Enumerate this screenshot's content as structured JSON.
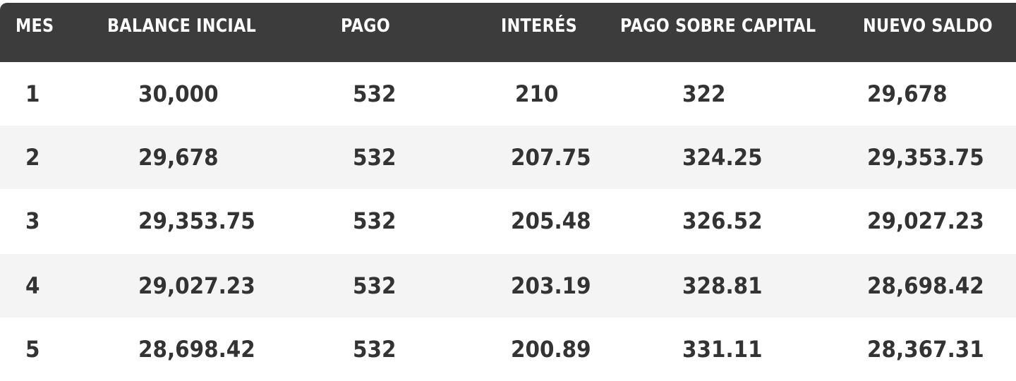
{
  "table": {
    "headers": [
      "MES",
      "BALANCE INCIAL",
      "PAGO",
      "INTERÉS",
      "PAGO SOBRE CAPITAL",
      "NUEVO SALDO"
    ],
    "rows": [
      [
        "1",
        "30,000",
        "532",
        "210",
        "322",
        "29,678"
      ],
      [
        "2",
        "29,678",
        "532",
        "207.75",
        "324.25",
        "29,353.75"
      ],
      [
        "3",
        "29,353.75",
        "532",
        "205.48",
        "326.52",
        "29,027.23"
      ],
      [
        "4",
        "29,027.23",
        "532",
        "203.19",
        "328.81",
        "28,698.42"
      ],
      [
        "5",
        "28,698.42",
        "532",
        "200.89",
        "331.11",
        "28,367.31"
      ]
    ]
  },
  "colors": {
    "header_bg": "#3c3c3c",
    "header_text": "#ffffff",
    "row_alt_bg": "#f4f4f4",
    "cell_text": "#333333"
  }
}
